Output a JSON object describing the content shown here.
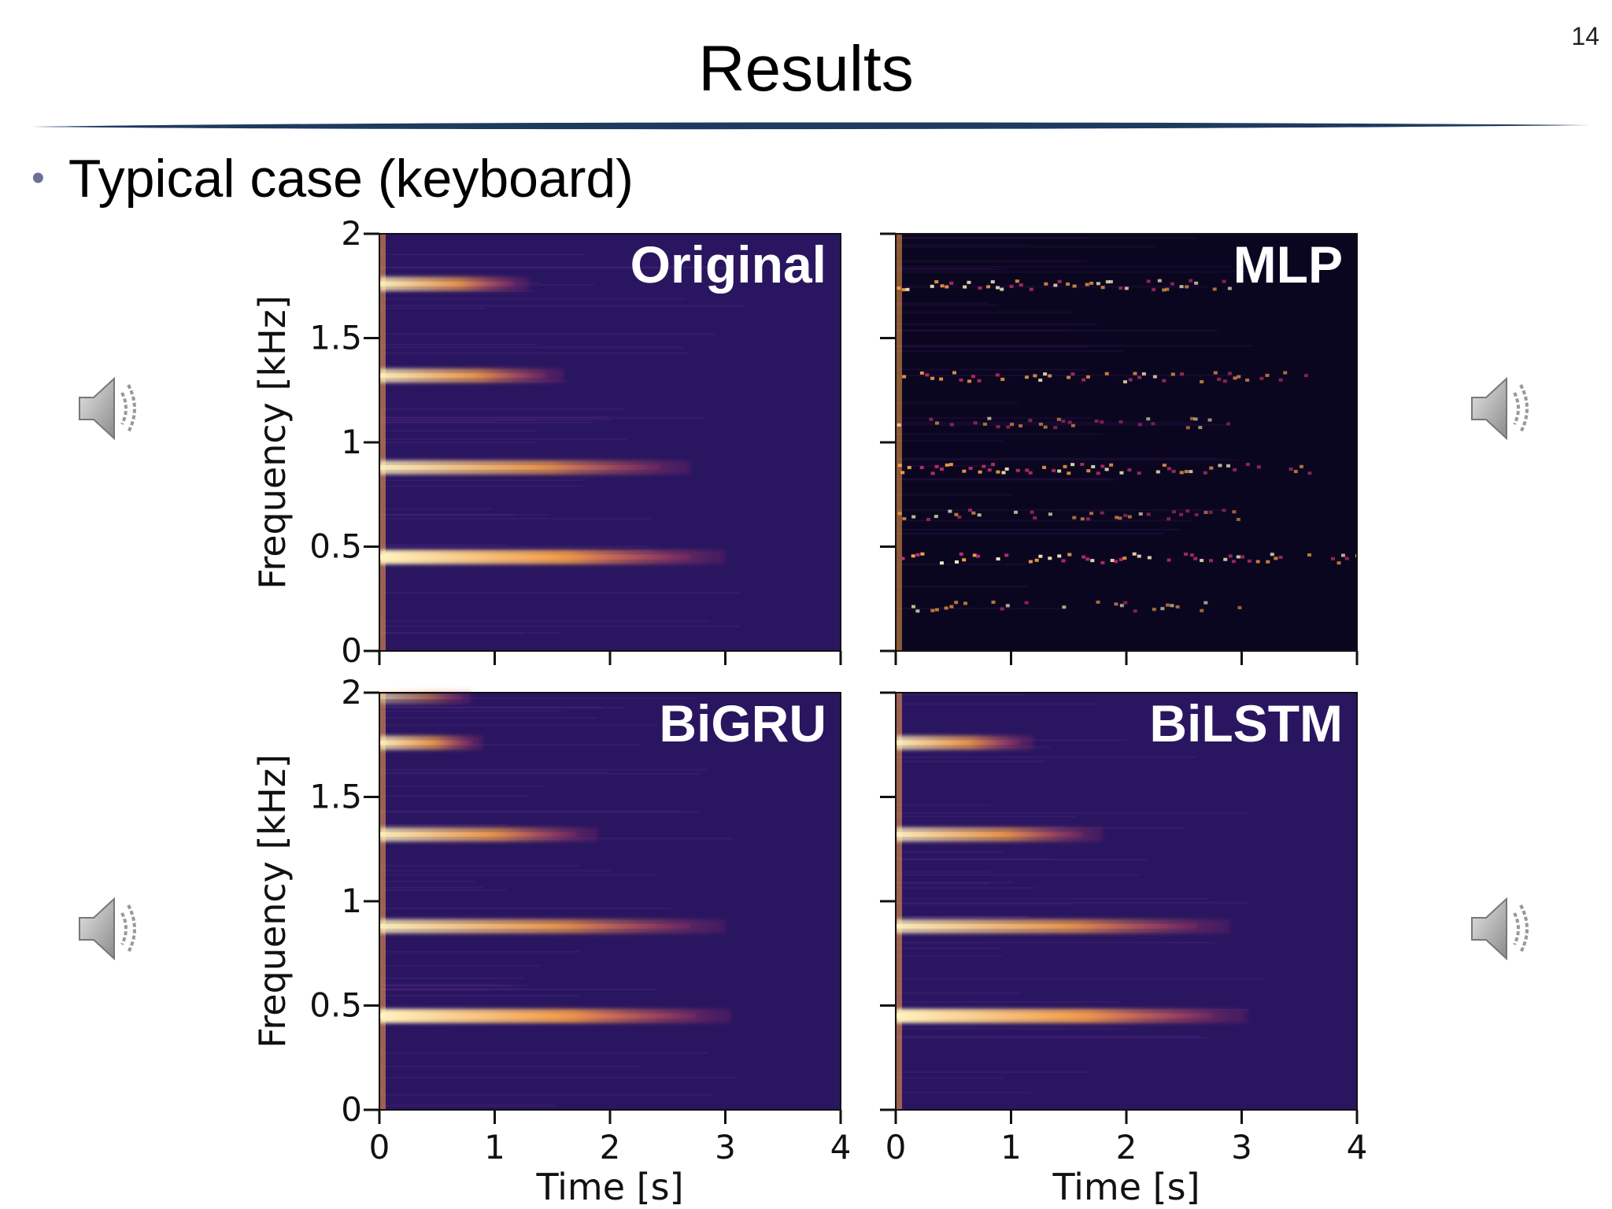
{
  "slide": {
    "title": "Results",
    "page_number": "14",
    "bullet": "Typical case (keyboard)"
  },
  "icons": {
    "audio": "speaker-icon"
  },
  "colors": {
    "rule": "#1e3a5f",
    "spectrogram_background": "#2a1660",
    "mlp_background": "#0b0620",
    "harmonic_core": "#fff3c0",
    "harmonic_mid": "#f7a14a",
    "harmonic_edge": "#c0306a",
    "bullet": "#6b6f9a"
  },
  "chart_data": [
    {
      "type": "heatmap",
      "title": "Original",
      "xlabel": "",
      "ylabel": "Frequency [kHz]",
      "xlim": [
        0,
        4
      ],
      "ylim": [
        0,
        2
      ],
      "xticks": [],
      "yticks": [
        "0",
        "0.5",
        "1",
        "1.5",
        "2"
      ],
      "series": [
        {
          "frequency": 0.45,
          "end_time": 3.0,
          "intensity": 1.0
        },
        {
          "frequency": 0.88,
          "end_time": 2.7,
          "intensity": 0.8
        },
        {
          "frequency": 1.32,
          "end_time": 1.6,
          "intensity": 0.8
        },
        {
          "frequency": 1.76,
          "end_time": 1.3,
          "intensity": 0.8
        }
      ]
    },
    {
      "type": "heatmap",
      "title": "MLP",
      "xlabel": "",
      "ylabel": "",
      "xlim": [
        0,
        4
      ],
      "ylim": [
        0,
        2
      ],
      "xticks": [],
      "yticks": [],
      "series": [
        {
          "frequency": 0.22,
          "end_time": 3.0,
          "intensity": 0.5
        },
        {
          "frequency": 0.45,
          "end_time": 4.0,
          "intensity": 1.0
        },
        {
          "frequency": 0.66,
          "end_time": 3.0,
          "intensity": 0.5
        },
        {
          "frequency": 0.88,
          "end_time": 3.6,
          "intensity": 0.9
        },
        {
          "frequency": 1.1,
          "end_time": 3.0,
          "intensity": 0.4
        },
        {
          "frequency": 1.32,
          "end_time": 3.6,
          "intensity": 0.8
        },
        {
          "frequency": 1.76,
          "end_time": 3.0,
          "intensity": 0.8
        }
      ]
    },
    {
      "type": "heatmap",
      "title": "BiGRU",
      "xlabel": "Time [s]",
      "ylabel": "Frequency [kHz]",
      "xlim": [
        0,
        4
      ],
      "ylim": [
        0,
        2
      ],
      "xticks": [
        "0",
        "1",
        "2",
        "3",
        "4"
      ],
      "yticks": [
        "0",
        "0.5",
        "1",
        "1.5",
        "2"
      ],
      "series": [
        {
          "frequency": 0.45,
          "end_time": 3.05,
          "intensity": 1.0
        },
        {
          "frequency": 0.88,
          "end_time": 3.0,
          "intensity": 0.8
        },
        {
          "frequency": 1.32,
          "end_time": 1.9,
          "intensity": 0.8
        },
        {
          "frequency": 1.76,
          "end_time": 0.9,
          "intensity": 0.8
        },
        {
          "frequency": 1.98,
          "end_time": 0.8,
          "intensity": 0.4
        }
      ]
    },
    {
      "type": "heatmap",
      "title": "BiLSTM",
      "xlabel": "Time [s]",
      "ylabel": "",
      "xlim": [
        0,
        4
      ],
      "ylim": [
        0,
        2
      ],
      "xticks": [
        "0",
        "1",
        "2",
        "3",
        "4"
      ],
      "yticks": [],
      "series": [
        {
          "frequency": 0.45,
          "end_time": 3.05,
          "intensity": 1.0
        },
        {
          "frequency": 0.88,
          "end_time": 2.9,
          "intensity": 0.8
        },
        {
          "frequency": 1.32,
          "end_time": 1.8,
          "intensity": 0.8
        },
        {
          "frequency": 1.76,
          "end_time": 1.2,
          "intensity": 0.8
        }
      ]
    }
  ]
}
